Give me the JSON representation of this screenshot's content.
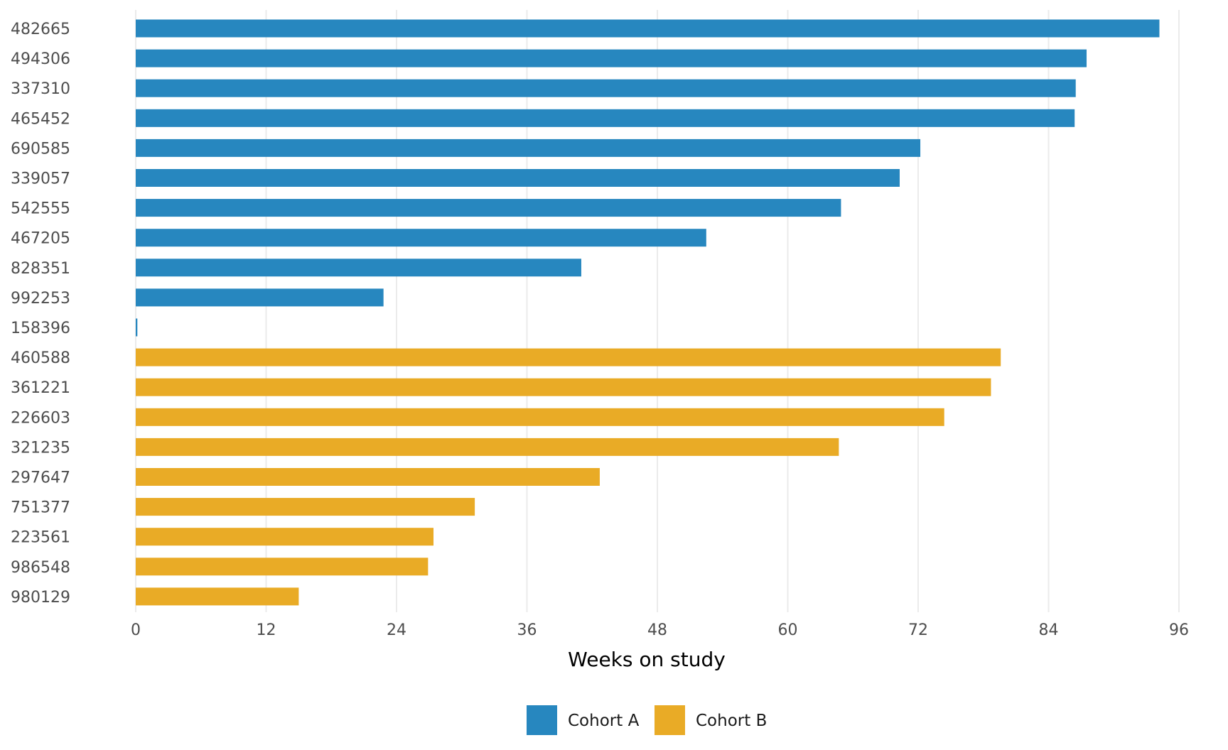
{
  "chart_data": {
    "type": "bar",
    "orientation": "horizontal",
    "xlabel": "Weeks on study",
    "ylabel": "",
    "title": "",
    "xlim": [
      0,
      96
    ],
    "x_ticks": [
      0,
      12,
      24,
      36,
      48,
      60,
      72,
      84,
      96
    ],
    "grid": true,
    "legend_position": "bottom",
    "series": [
      {
        "name": "Cohort A",
        "color": "#2787BF"
      },
      {
        "name": "Cohort B",
        "color": "#E9AB26"
      }
    ],
    "bars": [
      {
        "id": "482665",
        "value": 94.2,
        "series": "Cohort A"
      },
      {
        "id": "494306",
        "value": 87.5,
        "series": "Cohort A"
      },
      {
        "id": "337310",
        "value": 86.5,
        "series": "Cohort A"
      },
      {
        "id": "465452",
        "value": 86.4,
        "series": "Cohort A"
      },
      {
        "id": "690585",
        "value": 72.2,
        "series": "Cohort A"
      },
      {
        "id": "339057",
        "value": 70.3,
        "series": "Cohort A"
      },
      {
        "id": "542555",
        "value": 64.9,
        "series": "Cohort A"
      },
      {
        "id": "467205",
        "value": 52.5,
        "series": "Cohort A"
      },
      {
        "id": "828351",
        "value": 41.0,
        "series": "Cohort A"
      },
      {
        "id": "992253",
        "value": 22.8,
        "series": "Cohort A"
      },
      {
        "id": "158396",
        "value": 0.15,
        "series": "Cohort A"
      },
      {
        "id": "460588",
        "value": 79.6,
        "series": "Cohort B"
      },
      {
        "id": "361221",
        "value": 78.7,
        "series": "Cohort B"
      },
      {
        "id": "226603",
        "value": 74.4,
        "series": "Cohort B"
      },
      {
        "id": "321235",
        "value": 64.7,
        "series": "Cohort B"
      },
      {
        "id": "297647",
        "value": 42.7,
        "series": "Cohort B"
      },
      {
        "id": "751377",
        "value": 31.2,
        "series": "Cohort B"
      },
      {
        "id": "223561",
        "value": 27.4,
        "series": "Cohort B"
      },
      {
        "id": "986548",
        "value": 26.9,
        "series": "Cohort B"
      },
      {
        "id": "980129",
        "value": 15.0,
        "series": "Cohort B"
      }
    ]
  }
}
